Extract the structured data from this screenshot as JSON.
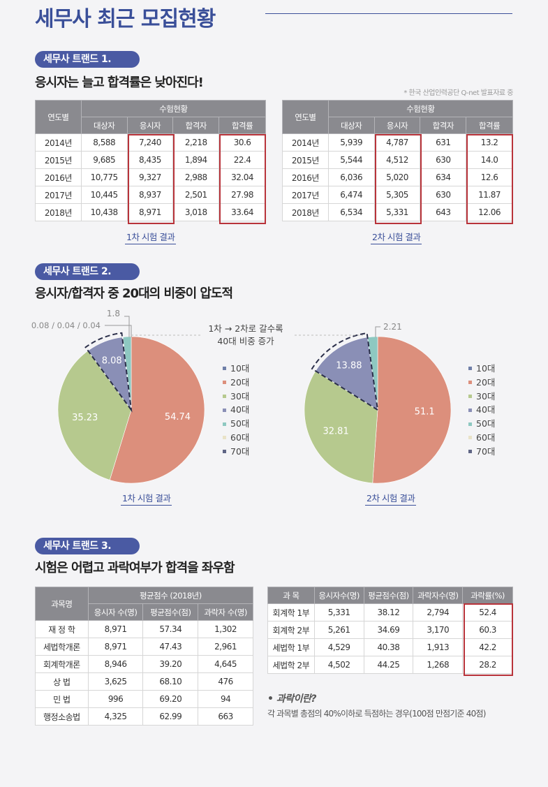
{
  "title": "세무사 최근 모집현황",
  "trend1": {
    "badge": "세무사 트랜드 1.",
    "headline": "응시자는 늘고 합격률은 낮아진다!",
    "source": "* 한국 산업인력공단 Q-net 발표자료 중",
    "table_header_year": "연도별",
    "table_header_group": "수험현황",
    "table_columns": [
      "대상자",
      "응시자",
      "합격자",
      "합격률"
    ],
    "first_exam": {
      "caption": "1차 시험 결과",
      "rows": [
        [
          "2014년",
          "8,588",
          "7,240",
          "2,218",
          "30.6"
        ],
        [
          "2015년",
          "9,685",
          "8,435",
          "1,894",
          "22.4"
        ],
        [
          "2016년",
          "10,775",
          "9,327",
          "2,988",
          "32.04"
        ],
        [
          "2017년",
          "10,445",
          "8,937",
          "2,501",
          "27.98"
        ],
        [
          "2018년",
          "10,438",
          "8,971",
          "3,018",
          "33.64"
        ]
      ]
    },
    "second_exam": {
      "caption": "2차 시험 결과",
      "rows": [
        [
          "2014년",
          "5,939",
          "4,787",
          "631",
          "13.2"
        ],
        [
          "2015년",
          "5,544",
          "4,512",
          "630",
          "14.0"
        ],
        [
          "2016년",
          "6,036",
          "5,020",
          "634",
          "12.6"
        ],
        [
          "2017년",
          "6,474",
          "5,305",
          "630",
          "11.87"
        ],
        [
          "2018년",
          "6,534",
          "5,331",
          "643",
          "12.06"
        ]
      ]
    }
  },
  "trend2": {
    "badge": "세무사 트랜드 2.",
    "headline": "응시자/합격자 중 20대의 비중이 압도적",
    "middle_note_line1": "1차 → 2차로 갈수록",
    "middle_note_line2": "40대 비중 증가",
    "colors": {
      "10대": "#6f7fa8",
      "20대": "#dc8f7c",
      "30대": "#b6c98e",
      "40대": "#8a8fb6",
      "50대": "#8ec8c1",
      "60대": "#e9e3c8",
      "70대": "#5f6585"
    }
  },
  "chart_data": [
    {
      "type": "pie",
      "caption": "1차 시험 결과",
      "categories": [
        "10대",
        "20대",
        "30대",
        "40대",
        "50대",
        "60대",
        "70대"
      ],
      "values": [
        0.08,
        54.74,
        35.23,
        8.08,
        1.8,
        0.04,
        0.04
      ],
      "small_label": "0.08 / 0.04 / 0.04",
      "legend_position": "right"
    },
    {
      "type": "pie",
      "caption": "2차 시험 결과",
      "categories": [
        "10대",
        "20대",
        "30대",
        "40대",
        "50대",
        "60대",
        "70대"
      ],
      "values": [
        0,
        51.1,
        32.81,
        13.88,
        2.21,
        0,
        0
      ],
      "legend_position": "right"
    }
  ],
  "trend3": {
    "badge": "세무사 트랜드 3.",
    "headline": "시험은 어렵고 과락여부가 합격을 좌우함",
    "left_table": {
      "header_subject": "과목명",
      "header_group": "평균점수 (2018년)",
      "columns": [
        "응시자 수(명)",
        "평균점수(점)",
        "과락자 수(명)"
      ],
      "rows": [
        [
          "재 정 학",
          "8,971",
          "57.34",
          "1,302"
        ],
        [
          "세법학개론",
          "8,971",
          "47.43",
          "2,961"
        ],
        [
          "회계학개론",
          "8,946",
          "39.20",
          "4,645"
        ],
        [
          "상 법",
          "3,625",
          "68.10",
          "476"
        ],
        [
          "민 법",
          "996",
          "69.20",
          "94"
        ],
        [
          "행정소송법",
          "4,325",
          "62.99",
          "663"
        ]
      ]
    },
    "right_table": {
      "columns": [
        "과 목",
        "응시자수(명)",
        "평균점수(점)",
        "과락자수(명)",
        "과락률(%)"
      ],
      "rows": [
        [
          "회계학 1부",
          "5,331",
          "38.12",
          "2,794",
          "52.4"
        ],
        [
          "회계학 2부",
          "5,261",
          "34.69",
          "3,170",
          "60.3"
        ],
        [
          "세법학 1부",
          "4,529",
          "40.38",
          "1,913",
          "42.2"
        ],
        [
          "세법학 2부",
          "4,502",
          "44.25",
          "1,268",
          "28.2"
        ]
      ]
    },
    "note_title": "• 과락이란?",
    "note_body": "각 과목별 총점의 40%이하로 득점하는 경우(100점 만점기준 40점)"
  }
}
